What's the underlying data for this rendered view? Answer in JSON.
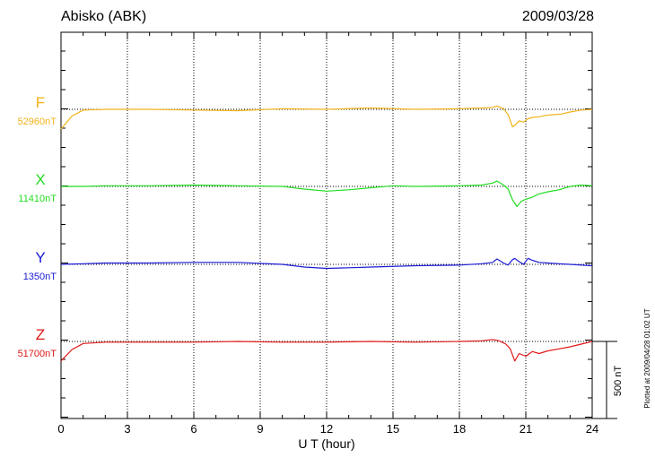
{
  "header": {
    "station": "Abisko (ABK)",
    "date": "2009/03/28"
  },
  "footer_note": "Plotted at 2009/04/28 01:02 UT",
  "chart_data": {
    "type": "line",
    "title": "Abisko (ABK)",
    "date": "2009/03/28",
    "xlabel": "U T (hour)",
    "xlim": [
      0,
      24
    ],
    "xticks": [
      "0",
      "3",
      "6",
      "9",
      "12",
      "15",
      "18",
      "21",
      "24"
    ],
    "x_gridlines_dotted": true,
    "scale_bar": {
      "label": "500 nT",
      "value_nT": 500
    },
    "series": [
      {
        "name": "F",
        "baseline_label": "52960nT",
        "baseline_nT": 52960,
        "color": "#f2b21a",
        "x": [
          0,
          0.5,
          1,
          2,
          4,
          6,
          8,
          10,
          12,
          14,
          16,
          18,
          19,
          19.5,
          19.7,
          20,
          20.2,
          20.4,
          20.5,
          20.7,
          20.9,
          21.1,
          21.3,
          21.6,
          21.9,
          22.2,
          22.6,
          23,
          23.5,
          24
        ],
        "y": [
          -145,
          -50,
          -5,
          0,
          0,
          -5,
          -10,
          5,
          0,
          10,
          0,
          5,
          10,
          15,
          25,
          5,
          -40,
          -130,
          -120,
          -85,
          -95,
          -70,
          -60,
          -55,
          -45,
          -40,
          -35,
          -20,
          -5,
          0
        ]
      },
      {
        "name": "X",
        "baseline_label": "11410nT",
        "baseline_nT": 11410,
        "color": "#22dd22",
        "x": [
          0,
          1,
          2,
          4,
          6,
          8,
          10,
          11,
          12,
          13,
          14,
          15,
          16,
          18,
          19,
          19.5,
          19.7,
          20,
          20.2,
          20.4,
          20.5,
          20.6,
          20.8,
          21,
          21.3,
          21.6,
          22,
          22.5,
          23,
          23.5,
          24
        ],
        "y": [
          0,
          0,
          5,
          5,
          10,
          5,
          0,
          -20,
          -35,
          -25,
          -10,
          5,
          0,
          5,
          10,
          25,
          40,
          10,
          -20,
          -100,
          -125,
          -150,
          -110,
          -95,
          -80,
          -55,
          -40,
          -25,
          0,
          10,
          5
        ]
      },
      {
        "name": "Y",
        "baseline_label": "1350nT",
        "baseline_nT": 1350,
        "color": "#1a1ad6",
        "x": [
          0,
          1,
          2,
          4,
          6,
          8,
          10,
          11,
          12,
          13,
          14,
          16,
          18,
          19,
          19.5,
          19.7,
          20,
          20.2,
          20.4,
          20.5,
          20.7,
          20.9,
          21.1,
          21.3,
          21.6,
          22,
          22.5,
          23,
          24
        ],
        "y": [
          0,
          5,
          10,
          10,
          15,
          15,
          0,
          -20,
          -30,
          -25,
          -20,
          -10,
          -5,
          5,
          15,
          40,
          10,
          -5,
          35,
          45,
          20,
          0,
          45,
          30,
          15,
          10,
          5,
          0,
          -10
        ]
      },
      {
        "name": "Z",
        "baseline_label": "51700nT",
        "baseline_nT": 51700,
        "color": "#e01818",
        "x": [
          0,
          0.5,
          1,
          2,
          4,
          6,
          8,
          10,
          12,
          14,
          16,
          18,
          19,
          19.5,
          19.8,
          20.1,
          20.3,
          20.5,
          20.7,
          21,
          21.3,
          21.6,
          22,
          22.5,
          23,
          23.5,
          24
        ],
        "y": [
          -145,
          -60,
          -15,
          -5,
          -5,
          -5,
          0,
          -5,
          -5,
          0,
          -5,
          0,
          5,
          15,
          5,
          -20,
          -55,
          -145,
          -90,
          -110,
          -75,
          -90,
          -70,
          -55,
          -40,
          -20,
          0
        ]
      }
    ]
  }
}
